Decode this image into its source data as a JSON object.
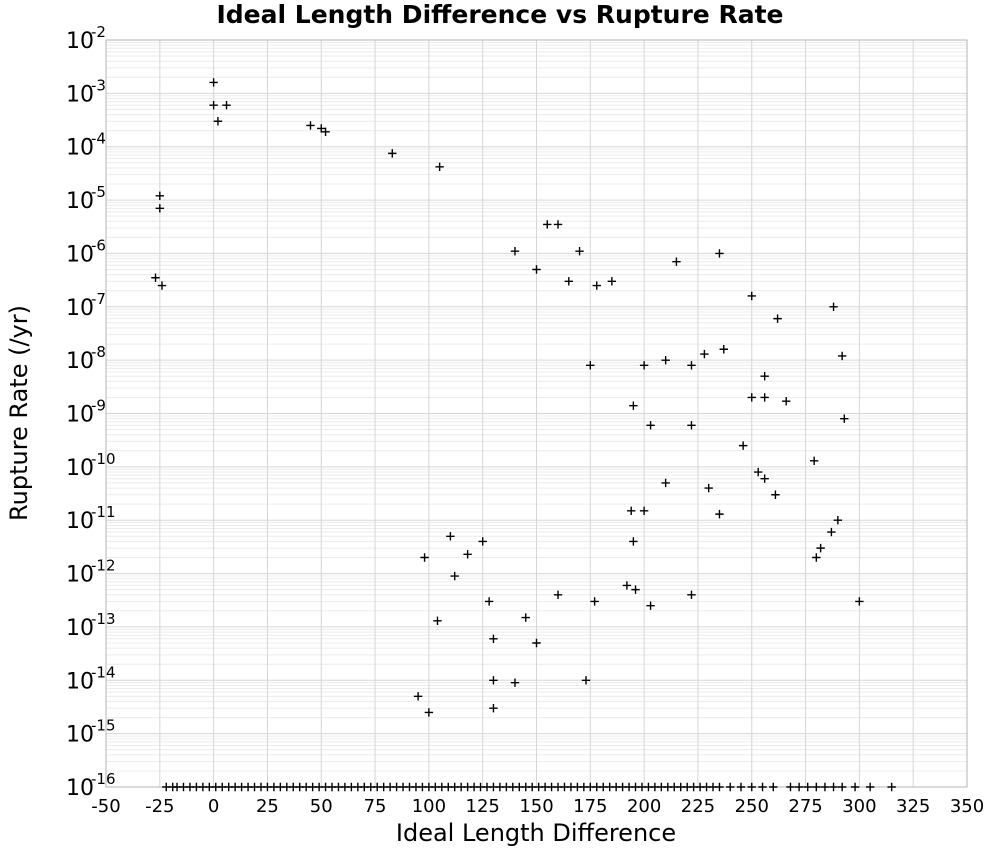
{
  "chart_data": {
    "type": "scatter",
    "title": "Ideal Length Difference vs Rupture Rate",
    "xlabel": "Ideal Length Difference",
    "ylabel": "Rupture Rate (/yr)",
    "xlim": [
      -50,
      350
    ],
    "ylim": [
      1e-16,
      0.01
    ],
    "yscale": "log",
    "grid": true,
    "marker": "+",
    "marker_color": "#000000",
    "x_ticks": [
      "-50",
      "-25",
      "0",
      "25",
      "50",
      "75",
      "100",
      "125",
      "150",
      "175",
      "200",
      "225",
      "250",
      "275",
      "300",
      "325",
      "350"
    ],
    "y_ticks": [
      {
        "base": "10",
        "exp": "-16"
      },
      {
        "base": "10",
        "exp": "-15"
      },
      {
        "base": "10",
        "exp": "-14"
      },
      {
        "base": "10",
        "exp": "-13"
      },
      {
        "base": "10",
        "exp": "-12"
      },
      {
        "base": "10",
        "exp": "-11"
      },
      {
        "base": "10",
        "exp": "-10"
      },
      {
        "base": "10",
        "exp": "-9"
      },
      {
        "base": "10",
        "exp": "-8"
      },
      {
        "base": "10",
        "exp": "-7"
      },
      {
        "base": "10",
        "exp": "-6"
      },
      {
        "base": "10",
        "exp": "-5"
      },
      {
        "base": "10",
        "exp": "-4"
      },
      {
        "base": "10",
        "exp": "-3"
      },
      {
        "base": "10",
        "exp": "-2"
      }
    ],
    "series": [
      {
        "points": [
          [
            -27,
            3.5e-07
          ],
          [
            -25,
            1.2e-05
          ],
          [
            -25,
            7e-06
          ],
          [
            -24,
            2.5e-07
          ],
          [
            0,
            0.0016
          ],
          [
            0,
            0.0006
          ],
          [
            2,
            0.0003
          ],
          [
            6,
            0.0006
          ],
          [
            45,
            0.00025
          ],
          [
            50,
            0.00022
          ],
          [
            52,
            0.00019
          ],
          [
            83,
            7.5e-05
          ],
          [
            105,
            4.2e-05
          ],
          [
            155,
            3.5e-06
          ],
          [
            160,
            3.5e-06
          ],
          [
            140,
            1.1e-06
          ],
          [
            150,
            5e-07
          ],
          [
            165,
            3e-07
          ],
          [
            170,
            1.1e-06
          ],
          [
            178,
            2.5e-07
          ],
          [
            185,
            3e-07
          ],
          [
            215,
            7e-07
          ],
          [
            235,
            1e-06
          ],
          [
            250,
            1.6e-07
          ],
          [
            262,
            6e-08
          ],
          [
            288,
            1e-07
          ],
          [
            175,
            8e-09
          ],
          [
            200,
            8e-09
          ],
          [
            210,
            1e-08
          ],
          [
            222,
            8e-09
          ],
          [
            228,
            1.3e-08
          ],
          [
            237,
            1.6e-08
          ],
          [
            256,
            5e-09
          ],
          [
            292,
            1.2e-08
          ],
          [
            195,
            1.4e-09
          ],
          [
            203,
            6e-10
          ],
          [
            222,
            6e-10
          ],
          [
            250,
            2e-09
          ],
          [
            256,
            2e-09
          ],
          [
            266,
            1.7e-09
          ],
          [
            293,
            8e-10
          ],
          [
            246,
            2.5e-10
          ],
          [
            253,
            8e-11
          ],
          [
            256,
            6e-11
          ],
          [
            279,
            1.3e-10
          ],
          [
            195,
            4e-12
          ],
          [
            194,
            1.5e-11
          ],
          [
            200,
            1.5e-11
          ],
          [
            210,
            5e-11
          ],
          [
            230,
            4e-11
          ],
          [
            235,
            1.3e-11
          ],
          [
            261,
            3e-11
          ],
          [
            282,
            3e-12
          ],
          [
            287,
            6e-12
          ],
          [
            160,
            4e-13
          ],
          [
            177,
            3e-13
          ],
          [
            192,
            6e-13
          ],
          [
            196,
            5e-13
          ],
          [
            203,
            2.5e-13
          ],
          [
            222,
            4e-13
          ],
          [
            130,
            6e-14
          ],
          [
            145,
            1.5e-13
          ],
          [
            150,
            5e-14
          ],
          [
            173,
            1e-14
          ],
          [
            130,
            1e-14
          ],
          [
            140,
            9e-15
          ],
          [
            130,
            3e-15
          ],
          [
            95,
            5e-15
          ],
          [
            100,
            2.5e-15
          ],
          [
            280,
            2e-12
          ],
          [
            290,
            1e-11
          ],
          [
            300,
            3e-13
          ],
          [
            125,
            4e-12
          ],
          [
            110,
            5e-12
          ],
          [
            98,
            2e-12
          ],
          [
            104,
            1.3e-13
          ],
          [
            112,
            9e-13
          ],
          [
            118,
            2.3e-12
          ],
          [
            128,
            3e-13
          ]
        ]
      }
    ],
    "floor_points_x": [
      -22,
      -19,
      -17,
      -14,
      -11,
      -8,
      -5,
      -2,
      1,
      4,
      7,
      10,
      13,
      16,
      19,
      22,
      25,
      28,
      31,
      34,
      37,
      40,
      43,
      46,
      49,
      52,
      55,
      58,
      61,
      64,
      67,
      70,
      73,
      76,
      79,
      82,
      85,
      88,
      91,
      94,
      97,
      100,
      103,
      106,
      109,
      112,
      115,
      118,
      121,
      124,
      127,
      130,
      133,
      136,
      139,
      142,
      145,
      148,
      151,
      154,
      157,
      160,
      163,
      166,
      169,
      172,
      175,
      178,
      181,
      184,
      187,
      190,
      193,
      196,
      199,
      202,
      205,
      208,
      211,
      214,
      217,
      220,
      223,
      226,
      229,
      232,
      235,
      240,
      245,
      250,
      255,
      260,
      268,
      272,
      276,
      280,
      284,
      288,
      292,
      298,
      305,
      315
    ]
  }
}
